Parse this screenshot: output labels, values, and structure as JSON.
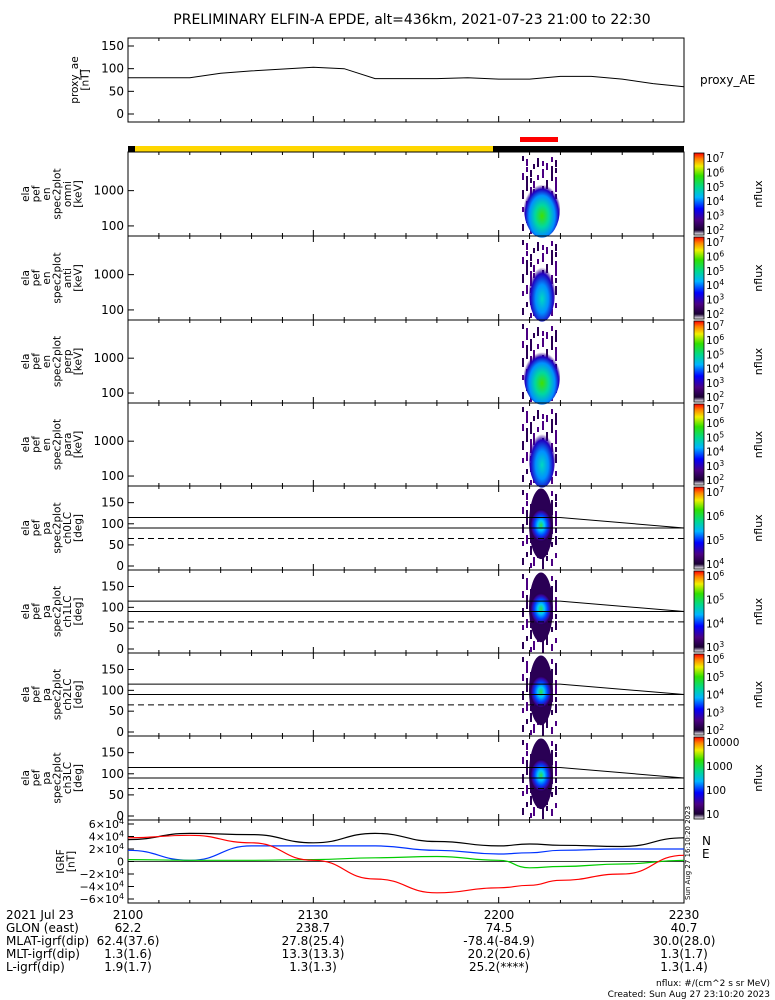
{
  "title": "PRELIMINARY ELFIN-A EPDE, alt=436km, 2021-07-23 21:00 to 22:30",
  "chart_data": [
    {
      "type": "line",
      "panel": "proxy_ae",
      "ylabel": [
        "proxy_ae",
        "[nT]"
      ],
      "series_label": "proxy_AE",
      "yticks": [
        "150",
        "100",
        "50",
        "0"
      ],
      "ylim": [
        0,
        150
      ],
      "x_minutes": [
        0,
        10,
        15,
        20,
        30,
        35,
        40,
        45,
        50,
        55,
        60,
        65,
        70,
        75,
        80,
        85,
        90
      ],
      "values": [
        80,
        80,
        90,
        95,
        103,
        100,
        78,
        78,
        78,
        80,
        77,
        77,
        83,
        83,
        77,
        67,
        60
      ]
    },
    {
      "type": "heatmap",
      "panel": "spec_omni",
      "ylabel": [
        "ela",
        "pef",
        "en",
        "spec2plot",
        "omni",
        "[keV]"
      ],
      "yticks": [
        "1000",
        "100"
      ],
      "colorbar_ticks": [
        "10^7",
        "10^6",
        "10^5",
        "10^4",
        "10^3",
        "10^2"
      ],
      "colorbar_label": "nflux"
    },
    {
      "type": "heatmap",
      "panel": "spec_anti",
      "ylabel": [
        "ela",
        "pef",
        "en",
        "spec2plot",
        "anti",
        "[keV]"
      ],
      "yticks": [
        "1000",
        "100"
      ],
      "colorbar_ticks": [
        "10^7",
        "10^6",
        "10^5",
        "10^4",
        "10^3",
        "10^2"
      ],
      "colorbar_label": "nflux"
    },
    {
      "type": "heatmap",
      "panel": "spec_perp",
      "ylabel": [
        "ela",
        "pef",
        "en",
        "spec2plot",
        "perp",
        "[keV]"
      ],
      "yticks": [
        "1000",
        "100"
      ],
      "colorbar_ticks": [
        "10^7",
        "10^6",
        "10^5",
        "10^4",
        "10^3",
        "10^2"
      ],
      "colorbar_label": "nflux"
    },
    {
      "type": "heatmap",
      "panel": "spec_para",
      "ylabel": [
        "ela",
        "pef",
        "en",
        "spec2plot",
        "para",
        "[keV]"
      ],
      "yticks": [
        "1000",
        "100"
      ],
      "colorbar_ticks": [
        "10^7",
        "10^6",
        "10^5",
        "10^4",
        "10^3",
        "10^2"
      ],
      "colorbar_label": "nflux"
    },
    {
      "type": "heatmap",
      "panel": "pa_ch0",
      "ylabel": [
        "ela",
        "pef",
        "pa",
        "spec2plot",
        "ch0LC",
        "[deg]"
      ],
      "yticks": [
        "150",
        "100",
        "50",
        "0"
      ],
      "colorbar_ticks": [
        "10^7",
        "10^6",
        "10^5",
        "10^4"
      ],
      "colorbar_label": "nflux"
    },
    {
      "type": "heatmap",
      "panel": "pa_ch1",
      "ylabel": [
        "ela",
        "pef",
        "pa",
        "spec2plot",
        "ch1LC",
        "[deg]"
      ],
      "yticks": [
        "150",
        "100",
        "50",
        "0"
      ],
      "colorbar_ticks": [
        "10^6",
        "10^5",
        "10^4",
        "10^3"
      ],
      "colorbar_label": "nflux"
    },
    {
      "type": "heatmap",
      "panel": "pa_ch2",
      "ylabel": [
        "ela",
        "pef",
        "pa",
        "spec2plot",
        "ch2LC",
        "[deg]"
      ],
      "yticks": [
        "150",
        "100",
        "50",
        "0"
      ],
      "colorbar_ticks": [
        "10^6",
        "10^5",
        "10^4",
        "10^3",
        "10^2"
      ],
      "colorbar_label": "nflux"
    },
    {
      "type": "heatmap",
      "panel": "pa_ch3",
      "ylabel": [
        "ela",
        "pef",
        "pa",
        "spec2plot",
        "ch3LC",
        "[deg]"
      ],
      "yticks": [
        "150",
        "100",
        "50",
        "0"
      ],
      "colorbar_ticks": [
        "10000",
        "1000",
        "100",
        "10"
      ],
      "colorbar_label": "nflux"
    },
    {
      "type": "line",
      "panel": "igrf",
      "ylabel": [
        "IGRF",
        "[nT]"
      ],
      "yticks": [
        "6×10^4",
        "4×10^4",
        "2×10^4",
        "0",
        "−2×10^4",
        "−4×10^4",
        "−6×10^4"
      ],
      "ylim": [
        -60000,
        60000
      ],
      "legend": [
        "N",
        "E"
      ],
      "x_minutes": [
        0,
        10,
        20,
        30,
        40,
        50,
        60,
        65,
        70,
        80,
        90
      ],
      "series": [
        {
          "color": "#000000",
          "values": [
            35000,
            45000,
            43000,
            30000,
            45000,
            32000,
            25000,
            28000,
            26000,
            24000,
            38000
          ]
        },
        {
          "color": "#0033ff",
          "values": [
            18000,
            2000,
            25000,
            25000,
            25000,
            18000,
            12000,
            14000,
            18000,
            20000,
            20000
          ]
        },
        {
          "color": "#00cc00",
          "values": [
            3000,
            2000,
            2000,
            3000,
            6000,
            8000,
            2000,
            -10000,
            -8000,
            -4000,
            2000
          ]
        },
        {
          "color": "#ff0000",
          "values": [
            38000,
            42000,
            30000,
            2000,
            -28000,
            -50000,
            -42000,
            -38000,
            -30000,
            -20000,
            10000
          ]
        }
      ]
    }
  ],
  "x_axis": {
    "ticks": [
      "2100",
      "2130",
      "2200",
      "2230"
    ],
    "rows": [
      {
        "label": "2021 Jul 23",
        "vals": [
          "2100",
          "2130",
          "2200",
          "2230"
        ]
      },
      {
        "label": "GLON (east)",
        "vals": [
          "62.2",
          "238.7",
          "74.5",
          "40.7"
        ]
      },
      {
        "label": "MLAT-igrf(dip)",
        "vals": [
          "62.4(37.6)",
          "27.8(25.4)",
          "-78.4(-84.9)",
          "30.0(28.0)"
        ]
      },
      {
        "label": "MLT-igrf(dip)",
        "vals": [
          "1.3(1.6)",
          "13.3(13.3)",
          "20.2(20.6)",
          "1.3(1.7)"
        ]
      },
      {
        "label": "L-igrf(dip)",
        "vals": [
          "1.9(1.7)",
          "1.3(1.3)",
          "25.2(****)",
          "1.3(1.4)"
        ]
      }
    ]
  },
  "footer": {
    "units": "nflux: #/(cm^2 s sr MeV)",
    "created": "Created: Sun Aug 27 23:10:20 2023"
  },
  "side_stamp": "Sun Aug 27 16:10:20 2023",
  "colors": {
    "sunlit": "#ffd700",
    "eclipse": "#000000",
    "science_zone": "#ff0000"
  }
}
